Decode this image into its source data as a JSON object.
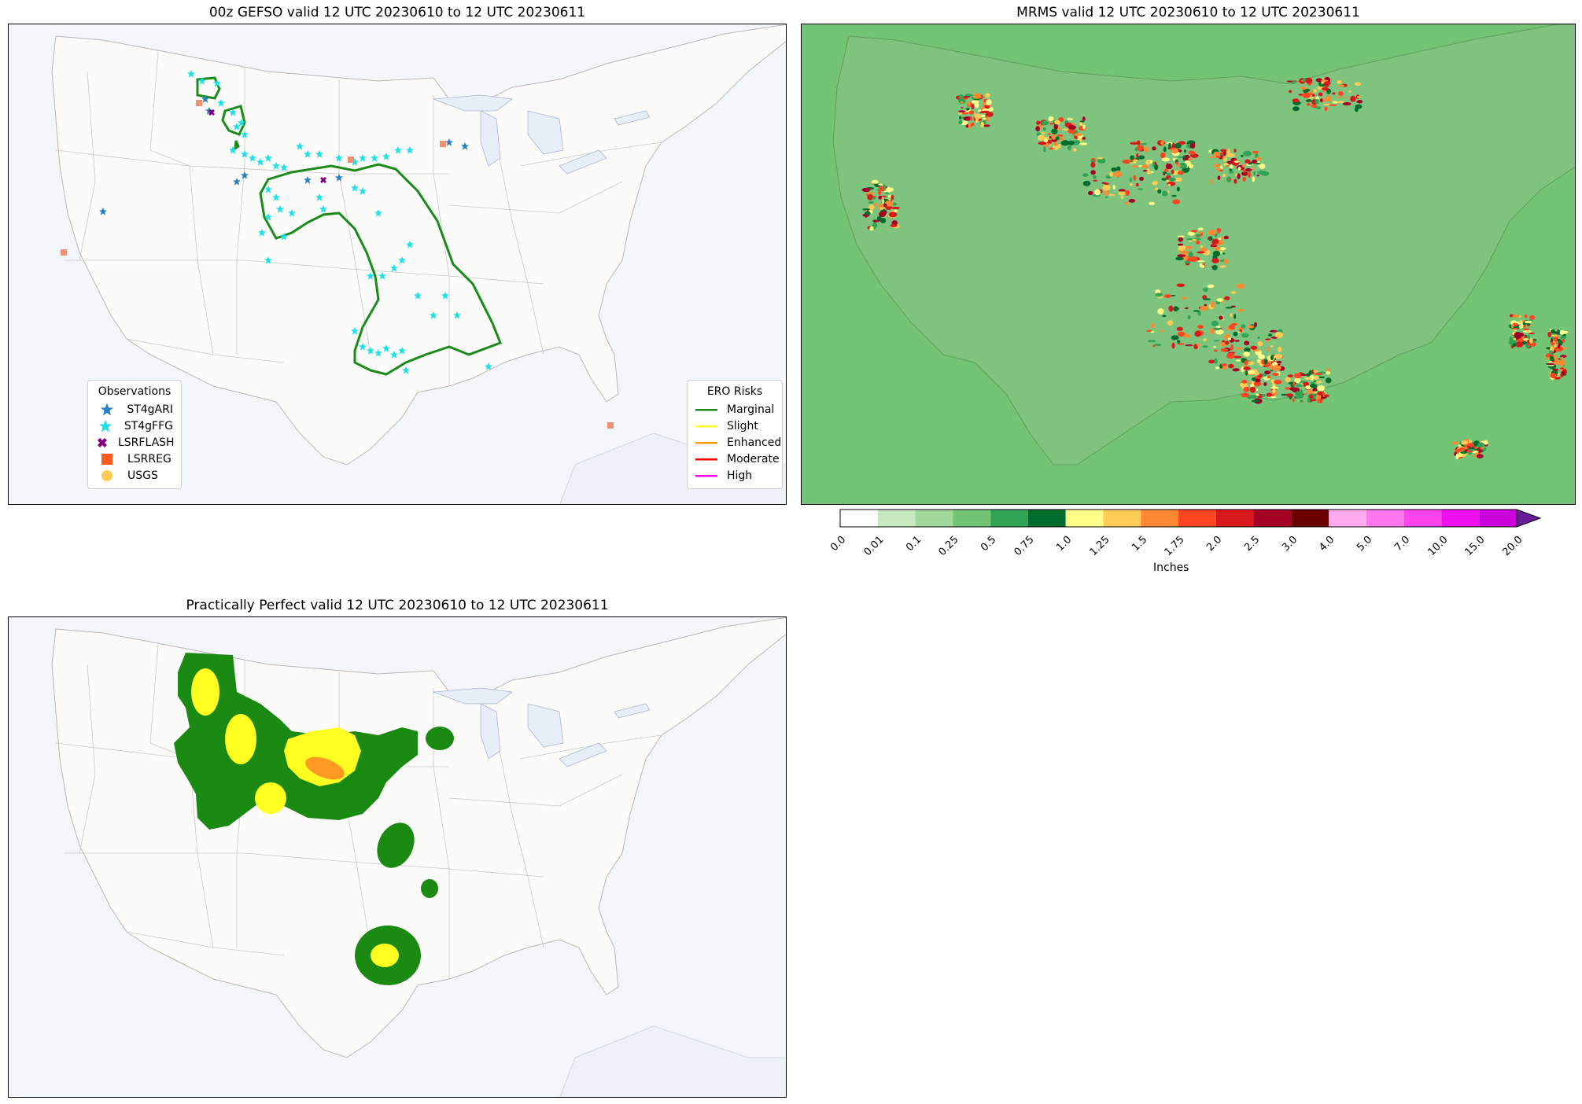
{
  "panels": {
    "gefso": {
      "title": "00z GEFSO valid 12 UTC 20230610 to 12 UTC 20230611",
      "obs_legend": {
        "title": "Observations",
        "items": [
          {
            "label": "ST4gARI",
            "marker": "star",
            "color": "#2a7fc1"
          },
          {
            "label": "ST4gFFG",
            "marker": "star",
            "color": "#1fe0e6"
          },
          {
            "label": "LSRFLASH",
            "marker": "x",
            "color": "#800080"
          },
          {
            "label": "LSRREG",
            "marker": "square",
            "color": "#ff5a1f"
          },
          {
            "label": "USGS",
            "marker": "circle",
            "color": "#ffcc55"
          }
        ]
      },
      "ero_legend": {
        "title": "ERO Risks",
        "items": [
          {
            "label": "Marginal",
            "color": "#1a8a1a"
          },
          {
            "label": "Slight",
            "color": "#ffff33"
          },
          {
            "label": "Enhanced",
            "color": "#ff9900"
          },
          {
            "label": "Moderate",
            "color": "#ff0000"
          },
          {
            "label": "High",
            "color": "#ff00ff"
          }
        ]
      }
    },
    "mrms": {
      "title": "MRMS valid 12 UTC 20230610 to 12 UTC 20230611",
      "colorbar": {
        "label": "Inches",
        "ticks": [
          "0.0",
          "0.01",
          "0.1",
          "0.25",
          "0.5",
          "0.75",
          "1.0",
          "1.25",
          "1.5",
          "1.75",
          "2.0",
          "2.5",
          "3.0",
          "4.0",
          "5.0",
          "7.0",
          "10.0",
          "15.0",
          "20.0"
        ],
        "colors": [
          "#ffffff",
          "#c7e9c0",
          "#a1d99b",
          "#74c476",
          "#31a354",
          "#006d2c",
          "#ffff88",
          "#ffcc55",
          "#ff8833",
          "#ff4422",
          "#d7191c",
          "#a50026",
          "#6b0000",
          "#ffaaee",
          "#ff77ee",
          "#ff44ee",
          "#ee11ee",
          "#cc00dd",
          "#990099"
        ],
        "extend_color": "#6a1b9a"
      }
    },
    "pp": {
      "title": "Practically Perfect valid 12 UTC 20230610 to 12 UTC 20230611"
    }
  }
}
